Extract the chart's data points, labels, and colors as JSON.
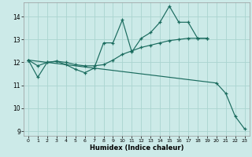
{
  "xlabel": "Humidex (Indice chaleur)",
  "bg_color": "#cceae8",
  "grid_color": "#aad4d0",
  "line_color": "#1a6b5e",
  "xlim": [
    -0.5,
    23.5
  ],
  "ylim": [
    8.8,
    14.6
  ],
  "yticks": [
    9,
    10,
    11,
    12,
    13,
    14
  ],
  "xticks": [
    0,
    1,
    2,
    3,
    4,
    5,
    6,
    7,
    8,
    9,
    10,
    11,
    12,
    13,
    14,
    15,
    16,
    17,
    18,
    19,
    20,
    21,
    22,
    23
  ],
  "line1_x": [
    0,
    1,
    2,
    3,
    4,
    5,
    6,
    7,
    8,
    9,
    10,
    11,
    12,
    13,
    14,
    15,
    16,
    17,
    18,
    19
  ],
  "line1_y": [
    12.1,
    11.35,
    12.0,
    12.05,
    11.9,
    11.7,
    11.55,
    11.75,
    12.85,
    12.85,
    13.85,
    12.45,
    13.05,
    13.3,
    13.75,
    14.45,
    13.75,
    13.75,
    13.05,
    13.05
  ],
  "line2_x": [
    0,
    1,
    2,
    3,
    4,
    5,
    6,
    7,
    8,
    9,
    10,
    11,
    12,
    13,
    14,
    15,
    16,
    17,
    18,
    19
  ],
  "line2_y": [
    12.1,
    11.85,
    12.0,
    12.05,
    12.0,
    11.9,
    11.85,
    11.85,
    11.9,
    12.1,
    12.35,
    12.5,
    12.65,
    12.75,
    12.85,
    12.95,
    13.0,
    13.05,
    13.05,
    13.05
  ],
  "line3_x": [
    0,
    20,
    21,
    22,
    23
  ],
  "line3_y": [
    12.1,
    11.1,
    10.65,
    9.65,
    9.1
  ]
}
